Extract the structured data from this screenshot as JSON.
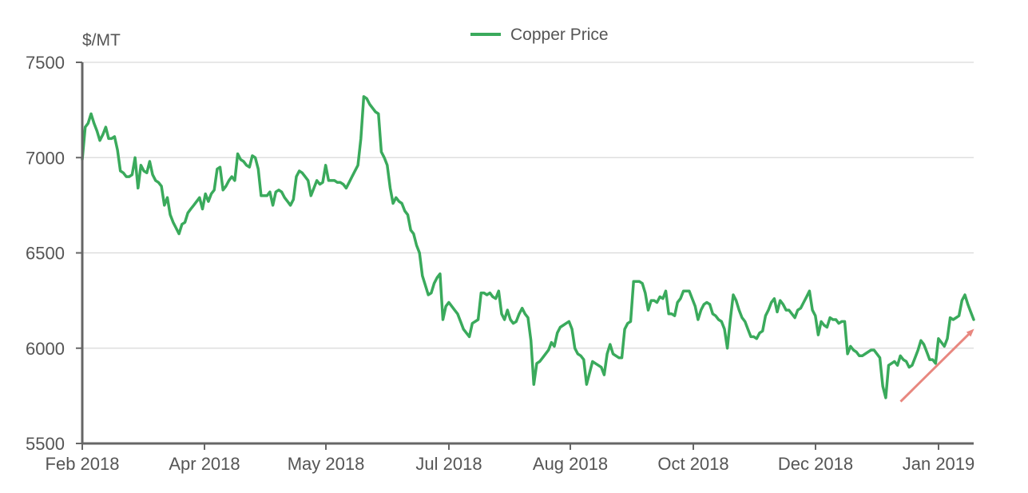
{
  "chart_data": {
    "type": "line",
    "ylabel": "$/MT",
    "ylim": [
      5500,
      7500
    ],
    "yticks": [
      "7500",
      "7000",
      "6500",
      "6000",
      "5500"
    ],
    "ytick_values": [
      7500,
      7000,
      6500,
      6000,
      5500
    ],
    "xticks": [
      "Feb 2018",
      "Apr 2018",
      "May 2018",
      "Jul 2018",
      "Aug 2018",
      "Oct 2018",
      "Dec 2018",
      "Jan 2019"
    ],
    "grid": "horizontal",
    "legend_position": "top-center",
    "series": [
      {
        "name": "Copper Price",
        "color": "#3aaa5c",
        "values": [
          6990,
          7160,
          7180,
          7230,
          7180,
          7140,
          7090,
          7120,
          7160,
          7100,
          7100,
          7110,
          7040,
          6930,
          6920,
          6900,
          6900,
          6910,
          7000,
          6840,
          6960,
          6930,
          6920,
          6980,
          6910,
          6880,
          6870,
          6850,
          6750,
          6790,
          6700,
          6660,
          6630,
          6600,
          6650,
          6660,
          6710,
          6730,
          6750,
          6770,
          6790,
          6730,
          6810,
          6770,
          6810,
          6830,
          6940,
          6950,
          6830,
          6850,
          6880,
          6900,
          6880,
          7020,
          6990,
          6980,
          6960,
          6950,
          7010,
          7000,
          6940,
          6800,
          6800,
          6800,
          6820,
          6750,
          6820,
          6830,
          6820,
          6790,
          6770,
          6750,
          6780,
          6900,
          6930,
          6920,
          6900,
          6880,
          6800,
          6840,
          6880,
          6860,
          6870,
          6960,
          6880,
          6880,
          6880,
          6870,
          6870,
          6860,
          6840,
          6870,
          6900,
          6930,
          6960,
          7100,
          7320,
          7310,
          7280,
          7260,
          7240,
          7230,
          7030,
          7000,
          6960,
          6840,
          6760,
          6790,
          6770,
          6760,
          6720,
          6700,
          6620,
          6600,
          6540,
          6500,
          6380,
          6330,
          6280,
          6290,
          6340,
          6370,
          6390,
          6150,
          6220,
          6240,
          6220,
          6200,
          6180,
          6140,
          6100,
          6080,
          6060,
          6130,
          6140,
          6150,
          6290,
          6290,
          6280,
          6290,
          6270,
          6260,
          6300,
          6180,
          6150,
          6200,
          6150,
          6130,
          6140,
          6180,
          6210,
          6180,
          6160,
          6040,
          5810,
          5920,
          5930,
          5950,
          5970,
          5990,
          6030,
          6010,
          6080,
          6110,
          6120,
          6130,
          6140,
          6100,
          6000,
          5970,
          5960,
          5940,
          5810,
          5870,
          5930,
          5920,
          5910,
          5900,
          5860,
          5970,
          6020,
          5970,
          5960,
          5950,
          5950,
          6100,
          6130,
          6140,
          6350,
          6350,
          6350,
          6340,
          6290,
          6200,
          6250,
          6250,
          6240,
          6270,
          6260,
          6300,
          6180,
          6180,
          6170,
          6240,
          6260,
          6300,
          6300,
          6300,
          6260,
          6220,
          6150,
          6200,
          6230,
          6240,
          6230,
          6180,
          6170,
          6150,
          6140,
          6100,
          6000,
          6150,
          6280,
          6250,
          6200,
          6160,
          6140,
          6100,
          6060,
          6060,
          6050,
          6080,
          6090,
          6170,
          6200,
          6240,
          6260,
          6190,
          6250,
          6230,
          6200,
          6200,
          6180,
          6160,
          6200,
          6210,
          6240,
          6270,
          6300,
          6200,
          6170,
          6070,
          6140,
          6120,
          6110,
          6160,
          6150,
          6150,
          6130,
          6140,
          6140,
          5970,
          6010,
          5990,
          5980,
          5960,
          5960,
          5970,
          5980,
          5990,
          5990,
          5970,
          5950,
          5800,
          5740,
          5910,
          5920,
          5930,
          5910,
          5960,
          5940,
          5930,
          5900,
          5910,
          5950,
          5990,
          6040,
          6020,
          5980,
          5940,
          5940,
          5920,
          6050,
          6030,
          6010,
          6050,
          6160,
          6150,
          6160,
          6170,
          6250,
          6280,
          6230,
          6190,
          6150
        ]
      }
    ],
    "annotation": {
      "type": "trend-arrow",
      "color": "#e8877f",
      "from_x_frac": 0.918,
      "from_value": 5720,
      "to_x_frac": 0.998,
      "to_value": 6090
    }
  }
}
